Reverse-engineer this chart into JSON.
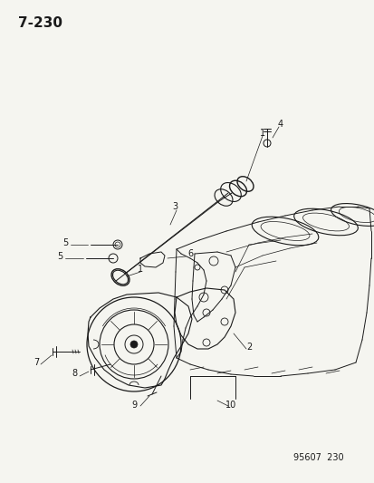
{
  "title": "7-230",
  "footer": "95607  230",
  "bg_color": "#f5f5f0",
  "line_color": "#1a1a1a",
  "title_fontsize": 11,
  "footer_fontsize": 7,
  "label_fontsize": 7,
  "fig_w": 4.14,
  "fig_h": 5.33,
  "dpi": 100
}
